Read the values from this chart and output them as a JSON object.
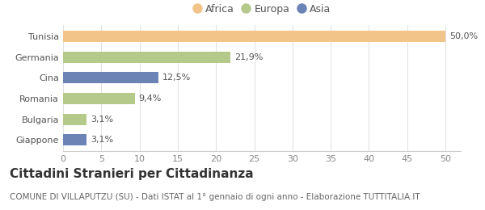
{
  "categories": [
    "Giappone",
    "Bulgaria",
    "Romania",
    "Cina",
    "Germania",
    "Tunisia"
  ],
  "values": [
    3.1,
    3.1,
    9.4,
    12.5,
    21.9,
    50.0
  ],
  "labels": [
    "3,1%",
    "3,1%",
    "9,4%",
    "12,5%",
    "21,9%",
    "50,0%"
  ],
  "colors": [
    "#6b83b5",
    "#b5c98a",
    "#b5c98a",
    "#6b83b5",
    "#b5c98a",
    "#f2c48a"
  ],
  "legend_items": [
    {
      "label": "Africa",
      "color": "#f2c48a"
    },
    {
      "label": "Europa",
      "color": "#b5c98a"
    },
    {
      "label": "Asia",
      "color": "#6b83b5"
    }
  ],
  "xlim": [
    0,
    52
  ],
  "xticks": [
    0,
    5,
    10,
    15,
    20,
    25,
    30,
    35,
    40,
    45,
    50
  ],
  "title": "Cittadini Stranieri per Cittadinanza",
  "subtitle": "COMUNE DI VILLAPUTZU (SU) - Dati ISTAT al 1° gennaio di ogni anno - Elaborazione TUTTITALIA.IT",
  "background_color": "#ffffff",
  "bar_height": 0.55,
  "title_fontsize": 11,
  "subtitle_fontsize": 7.5,
  "tick_fontsize": 8,
  "label_fontsize": 8
}
